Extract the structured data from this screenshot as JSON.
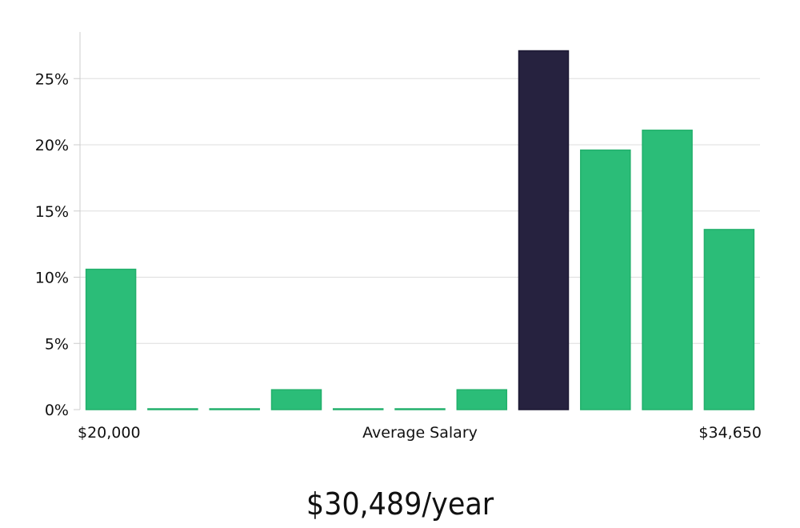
{
  "chart_data": {
    "type": "bar",
    "categories": [
      "1",
      "2",
      "3",
      "4",
      "5",
      "6",
      "7",
      "8",
      "9",
      "10",
      "11"
    ],
    "values": [
      10.6,
      0.05,
      0.05,
      1.5,
      0.05,
      0.05,
      1.5,
      27.1,
      19.6,
      21.1,
      13.6
    ],
    "highlight_index": 7,
    "ylim": [
      0,
      28.5
    ],
    "yticks": [
      0,
      5,
      10,
      15,
      20,
      25
    ],
    "ytick_labels": [
      "0%",
      "5%",
      "10%",
      "15%",
      "20%",
      "25%"
    ],
    "xlabel_left": "$20,000",
    "xlabel_center": "Average Salary",
    "xlabel_right": "$34,650",
    "grid": true,
    "colors": {
      "bar": "#2bbd78",
      "highlight": "#26223f",
      "grid": "#dddddd",
      "axis": "#cccccc"
    }
  },
  "headline": "$30,489/year"
}
